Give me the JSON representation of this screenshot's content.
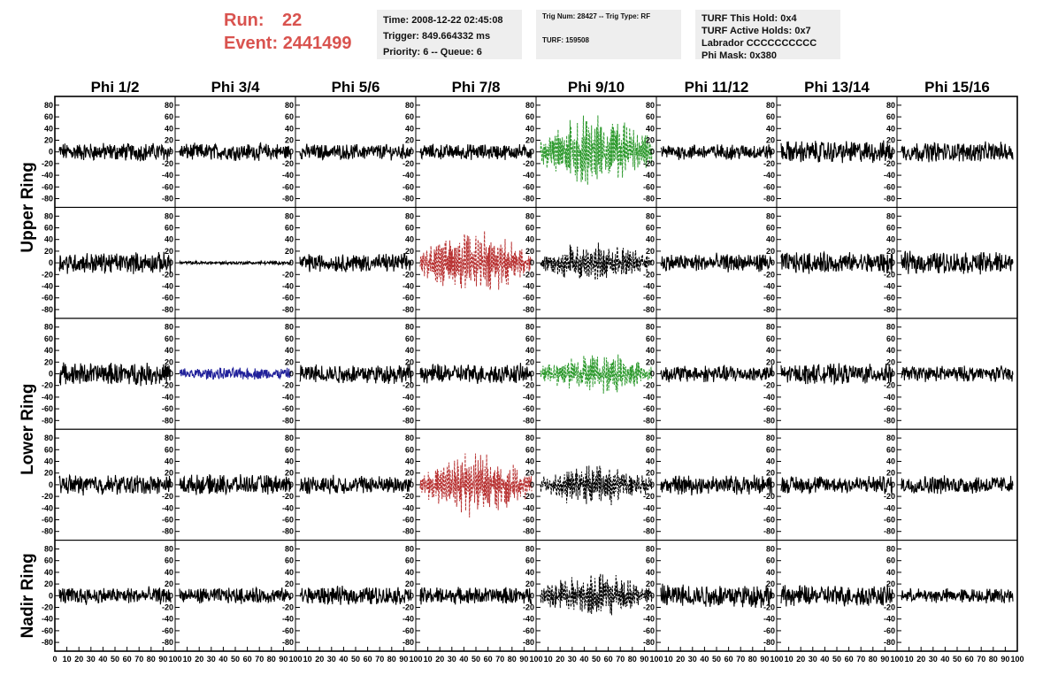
{
  "header": {
    "run_label": "Run:",
    "run_value": "22",
    "event_label": "Event:",
    "event_value": "2441499"
  },
  "info_box_1": {
    "time": "Time: 2008-12-22 02:45:08",
    "trigger": "Trigger: 849.664332 ms",
    "priority": "Priority: 6 -- Queue: 6"
  },
  "info_box_2": {
    "trig": "Trig Num: 28427 -- Trig Type: RF",
    "turf": "TURF: 159508"
  },
  "info_box_3": {
    "hold": "TURF This Hold: 0x4",
    "active": "TURF Active Holds: 0x7",
    "labrador": "Labrador CCCCCCCCCC",
    "phimask": "Phi Mask: 0x380"
  },
  "colors": {
    "black": "#000000",
    "green": "#2e9a2e",
    "red": "#b83232",
    "blue": "#20209a",
    "header_red": "#d9534f",
    "info_bg": "#eeeeee"
  },
  "chart_data": {
    "type": "line",
    "columns": [
      "Phi 1/2",
      "Phi 3/4",
      "Phi 5/6",
      "Phi 7/8",
      "Phi 9/10",
      "Phi 11/12",
      "Phi 13/14",
      "Phi 15/16"
    ],
    "ring_labels": [
      {
        "label": "Upper Ring",
        "rows": [
          0,
          1
        ]
      },
      {
        "label": "Lower Ring",
        "rows": [
          2,
          3
        ]
      },
      {
        "label": "Nadir Ring",
        "rows": [
          4
        ]
      }
    ],
    "ylim": [
      -95,
      95
    ],
    "yticks": [
      -80,
      -60,
      -40,
      -20,
      0,
      20,
      40,
      60,
      80
    ],
    "xlim": [
      0,
      100
    ],
    "xticks": [
      0,
      10,
      20,
      30,
      40,
      50,
      60,
      70,
      80,
      90,
      100
    ],
    "panels": [
      [
        {
          "c": "black",
          "a": 14,
          "s": "solid"
        },
        {
          "c": "black",
          "a": 13,
          "s": "solid"
        },
        {
          "c": "black",
          "a": 12,
          "s": "solid"
        },
        {
          "c": "black",
          "a": 12,
          "s": "solid"
        },
        {
          "c": "green",
          "a": 55,
          "s": "dashed",
          "env": 1
        },
        {
          "c": "black",
          "a": 12,
          "s": "solid"
        },
        {
          "c": "black",
          "a": 17,
          "s": "solid"
        },
        {
          "c": "black",
          "a": 15,
          "s": "solid"
        }
      ],
      [
        {
          "c": "black",
          "a": 16,
          "s": "solid"
        },
        {
          "c": "black",
          "a": 2.5,
          "s": "solid"
        },
        {
          "c": "black",
          "a": 14,
          "s": "solid"
        },
        {
          "c": "red",
          "a": 48,
          "s": "dashed",
          "env": 1
        },
        {
          "c": "black",
          "a": 30,
          "s": "dashed",
          "env": 1
        },
        {
          "c": "black",
          "a": 14,
          "s": "solid"
        },
        {
          "c": "black",
          "a": 16,
          "s": "solid"
        },
        {
          "c": "black",
          "a": 17,
          "s": "solid"
        }
      ],
      [
        {
          "c": "black",
          "a": 17,
          "s": "solid"
        },
        {
          "c": "blue",
          "a": 9,
          "s": "solid"
        },
        {
          "c": "black",
          "a": 15,
          "s": "solid"
        },
        {
          "c": "black",
          "a": 15,
          "s": "solid"
        },
        {
          "c": "green",
          "a": 30,
          "s": "dashed",
          "env": 1
        },
        {
          "c": "black",
          "a": 13,
          "s": "solid"
        },
        {
          "c": "black",
          "a": 15,
          "s": "solid"
        },
        {
          "c": "black",
          "a": 12,
          "s": "solid"
        }
      ],
      [
        {
          "c": "black",
          "a": 15,
          "s": "solid"
        },
        {
          "c": "black",
          "a": 15,
          "s": "solid"
        },
        {
          "c": "black",
          "a": 14,
          "s": "solid"
        },
        {
          "c": "red",
          "a": 46,
          "s": "dashed",
          "env": 1
        },
        {
          "c": "black",
          "a": 30,
          "s": "dashed",
          "env": 1
        },
        {
          "c": "black",
          "a": 15,
          "s": "solid"
        },
        {
          "c": "black",
          "a": 14,
          "s": "solid"
        },
        {
          "c": "black",
          "a": 14,
          "s": "solid"
        }
      ],
      [
        {
          "c": "black",
          "a": 13,
          "s": "solid"
        },
        {
          "c": "black",
          "a": 12,
          "s": "solid"
        },
        {
          "c": "black",
          "a": 14,
          "s": "solid"
        },
        {
          "c": "black",
          "a": 13,
          "s": "solid"
        },
        {
          "c": "black",
          "a": 34,
          "s": "dashed",
          "env": 1
        },
        {
          "c": "black",
          "a": 18,
          "s": "solid"
        },
        {
          "c": "black",
          "a": 16,
          "s": "solid"
        },
        {
          "c": "black",
          "a": 11,
          "s": "solid"
        }
      ]
    ]
  }
}
